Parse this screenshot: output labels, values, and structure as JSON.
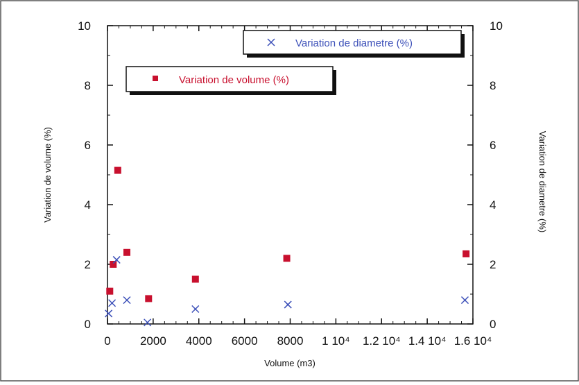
{
  "chart_data": {
    "type": "scatter",
    "xlabel": "Volume (m3)",
    "ylabel_left": "Variation de volume (%)",
    "ylabel_right": "Variation de diametre (%)",
    "xlim": [
      0,
      16000
    ],
    "ylim_left": [
      0,
      10
    ],
    "ylim_right": [
      0,
      10
    ],
    "x_ticks": [
      0,
      2000,
      4000,
      6000,
      8000,
      10000,
      12000,
      14000,
      16000
    ],
    "x_tick_labels": [
      "0",
      "2000",
      "4000",
      "6000",
      "8000",
      "1 10⁴",
      "1.2 10⁴",
      "1.4 10⁴",
      "1.6 10⁴"
    ],
    "y_left_ticks": [
      0,
      2,
      4,
      6,
      8,
      10
    ],
    "y_left_tick_labels": [
      "0",
      "2",
      "4",
      "6",
      "8",
      "10"
    ],
    "y_right_ticks": [
      0,
      2,
      4,
      6,
      8,
      10
    ],
    "y_right_tick_labels": [
      "0",
      "2",
      "4",
      "6",
      "8",
      "10"
    ],
    "legend_placement": "top-right",
    "grid": false,
    "series": [
      {
        "name": "Variation de volume (%)",
        "marker": "square",
        "color": "#c8102e",
        "axis": "left",
        "points": [
          {
            "x": 100,
            "y": 1.1
          },
          {
            "x": 250,
            "y": 2.0
          },
          {
            "x": 450,
            "y": 5.15
          },
          {
            "x": 850,
            "y": 2.4
          },
          {
            "x": 1800,
            "y": 0.85
          },
          {
            "x": 3850,
            "y": 1.5
          },
          {
            "x": 7850,
            "y": 2.2
          },
          {
            "x": 15700,
            "y": 2.35
          }
        ]
      },
      {
        "name": "Variation de diametre (%)",
        "marker": "x",
        "color": "#3b4fb8",
        "axis": "right",
        "points": [
          {
            "x": 50,
            "y": 0.35
          },
          {
            "x": 200,
            "y": 0.7
          },
          {
            "x": 400,
            "y": 2.15
          },
          {
            "x": 850,
            "y": 0.8
          },
          {
            "x": 1750,
            "y": 0.05
          },
          {
            "x": 3850,
            "y": 0.5
          },
          {
            "x": 7900,
            "y": 0.65
          },
          {
            "x": 15650,
            "y": 0.8
          }
        ]
      }
    ]
  }
}
